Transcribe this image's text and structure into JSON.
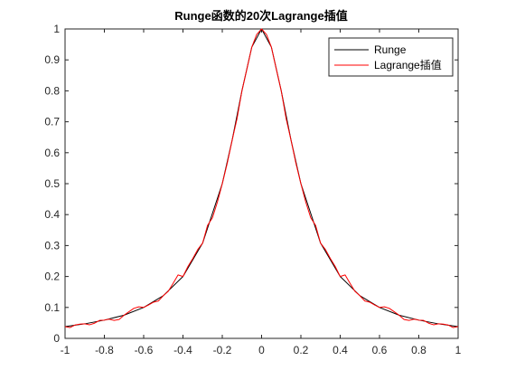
{
  "chart_data": {
    "type": "line",
    "title": "Runge函数的20次Lagrange插值",
    "xlabel": "",
    "ylabel": "",
    "xlim": [
      -1,
      1
    ],
    "ylim": [
      0,
      1
    ],
    "x_ticks": [
      "-1",
      "-0.8",
      "-0.6",
      "-0.4",
      "-0.2",
      "0",
      "0.2",
      "0.4",
      "0.6",
      "0.8",
      "1"
    ],
    "y_ticks": [
      "0",
      "0.1",
      "0.2",
      "0.3",
      "0.4",
      "0.5",
      "0.6",
      "0.7",
      "0.8",
      "0.9",
      "1"
    ],
    "grid": false,
    "legend_position": "top-right",
    "series": [
      {
        "name": "Runge",
        "color": "#000000",
        "x": [
          -1,
          -0.9,
          -0.8,
          -0.7,
          -0.6,
          -0.5,
          -0.4,
          -0.3,
          -0.2,
          -0.15,
          -0.1,
          -0.05,
          0,
          0.05,
          0.1,
          0.15,
          0.2,
          0.3,
          0.4,
          0.5,
          0.6,
          0.7,
          0.8,
          0.9,
          1
        ],
        "y": [
          0.038,
          0.047,
          0.059,
          0.075,
          0.1,
          0.138,
          0.2,
          0.308,
          0.5,
          0.64,
          0.8,
          0.941,
          1,
          0.941,
          0.8,
          0.64,
          0.5,
          0.308,
          0.2,
          0.138,
          0.1,
          0.075,
          0.059,
          0.047,
          0.038
        ]
      },
      {
        "name": "Lagrange插值",
        "color": "#ff0000",
        "x": [
          -1,
          -0.975,
          -0.95,
          -0.925,
          -0.9,
          -0.875,
          -0.85,
          -0.825,
          -0.8,
          -0.775,
          -0.75,
          -0.725,
          -0.7,
          -0.675,
          -0.65,
          -0.625,
          -0.6,
          -0.575,
          -0.55,
          -0.525,
          -0.5,
          -0.475,
          -0.45,
          -0.425,
          -0.4,
          -0.375,
          -0.35,
          -0.325,
          -0.3,
          -0.275,
          -0.25,
          -0.225,
          -0.2,
          -0.175,
          -0.15,
          -0.125,
          -0.1,
          -0.075,
          -0.05,
          -0.025,
          0,
          0.025,
          0.05,
          0.075,
          0.1,
          0.125,
          0.15,
          0.175,
          0.2,
          0.225,
          0.25,
          0.275,
          0.3,
          0.325,
          0.35,
          0.375,
          0.4,
          0.425,
          0.45,
          0.475,
          0.5,
          0.525,
          0.55,
          0.575,
          0.6,
          0.625,
          0.65,
          0.675,
          0.7,
          0.725,
          0.75,
          0.775,
          0.8,
          0.825,
          0.85,
          0.875,
          0.9,
          0.925,
          0.95,
          0.975,
          1
        ],
        "y": [
          0.038,
          0.035,
          0.043,
          0.046,
          0.047,
          0.044,
          0.049,
          0.058,
          0.059,
          0.062,
          0.058,
          0.061,
          0.075,
          0.086,
          0.097,
          0.102,
          0.1,
          0.108,
          0.117,
          0.121,
          0.138,
          0.152,
          0.178,
          0.205,
          0.2,
          0.232,
          0.258,
          0.287,
          0.308,
          0.365,
          0.39,
          0.44,
          0.5,
          0.565,
          0.64,
          0.71,
          0.8,
          0.87,
          0.941,
          0.982,
          1,
          0.982,
          0.941,
          0.87,
          0.8,
          0.71,
          0.64,
          0.565,
          0.5,
          0.44,
          0.39,
          0.365,
          0.308,
          0.287,
          0.258,
          0.232,
          0.2,
          0.205,
          0.178,
          0.152,
          0.138,
          0.121,
          0.117,
          0.108,
          0.1,
          0.102,
          0.097,
          0.086,
          0.075,
          0.061,
          0.058,
          0.062,
          0.059,
          0.058,
          0.049,
          0.044,
          0.047,
          0.046,
          0.043,
          0.035,
          0.038
        ]
      }
    ]
  }
}
